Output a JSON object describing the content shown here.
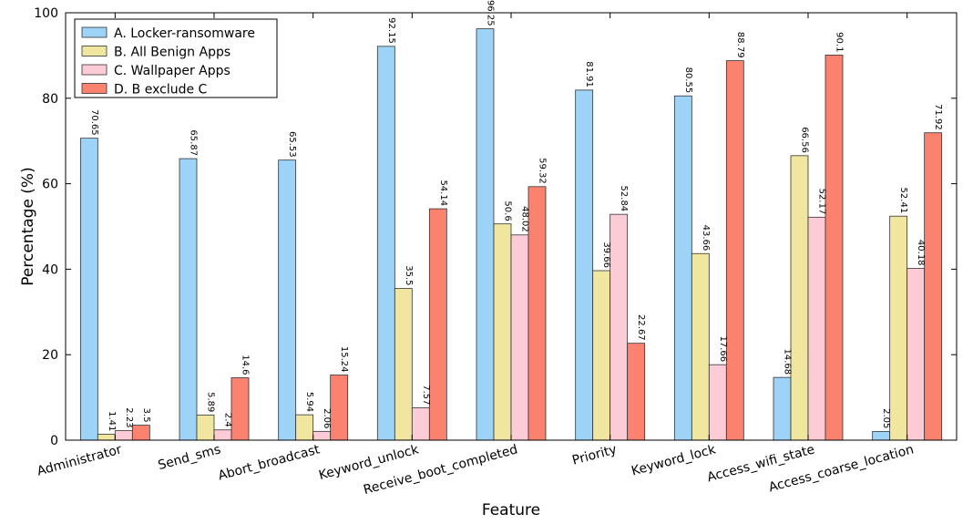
{
  "chart_data": {
    "type": "bar",
    "title": "",
    "xlabel": "Feature",
    "ylabel": "Percentage (%)",
    "ylim": [
      0,
      100
    ],
    "yticks": [
      "0",
      "20",
      "40",
      "60",
      "80",
      "100"
    ],
    "grid": false,
    "legend_position": "top-left",
    "categories": [
      "Administrator",
      "Send_sms",
      "Abort_broadcast",
      "Keyword_unlock",
      "Receive_boot_completed",
      "Priority",
      "Keyword_lock",
      "Access_wifi_state",
      "Access_coarse_location"
    ],
    "series": [
      {
        "name": "A. Locker-ransomware",
        "color": "#9dd3f7",
        "values": [
          70.65,
          65.87,
          65.53,
          92.15,
          96.25,
          81.91,
          80.55,
          14.68,
          2.05
        ],
        "labels": [
          "70.65",
          "65.87",
          "65.53",
          "92.15",
          "96.25",
          "81.91",
          "80.55",
          "14.68",
          "2.05"
        ]
      },
      {
        "name": "B. All Benign Apps",
        "color": "#f0e6a0",
        "values": [
          1.41,
          5.89,
          5.94,
          35.5,
          50.6,
          39.66,
          43.66,
          66.56,
          52.41
        ],
        "labels": [
          "1.41",
          "5.89",
          "5.94",
          "35.5",
          "50.6",
          "39.66",
          "43.66",
          "66.56",
          "52.41"
        ]
      },
      {
        "name": "C. Wallpaper Apps",
        "color": "#fcccd6",
        "values": [
          2.23,
          2.4,
          2.06,
          7.57,
          48.02,
          52.84,
          17.66,
          52.17,
          40.18
        ],
        "labels": [
          "2.23",
          "2.4",
          "2.06",
          "7.57",
          "48.02",
          "52.84",
          "17.66",
          "52.17",
          "40.18"
        ]
      },
      {
        "name": "D. B exclude C",
        "color": "#fa826e",
        "values": [
          3.5,
          14.6,
          15.24,
          54.14,
          59.32,
          22.67,
          88.79,
          90.1,
          71.92
        ],
        "labels": [
          "3.5",
          "14.6",
          "15.24",
          "54.14",
          "59.32",
          "22.67",
          "88.79",
          "90.1",
          "71.92"
        ]
      }
    ]
  }
}
